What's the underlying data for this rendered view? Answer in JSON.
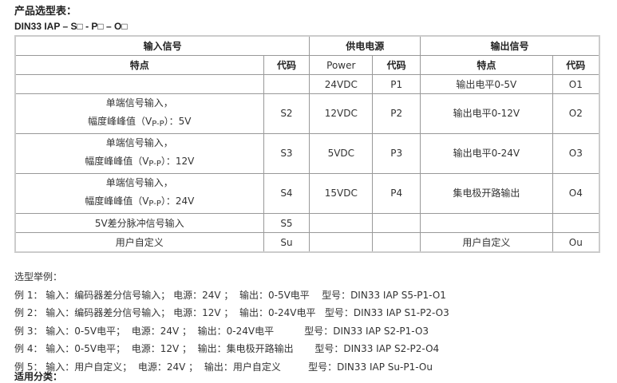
{
  "title": "产品选型表：",
  "model_code": "DIN33  IAP – S□ - P□ – O□",
  "table": {
    "groups": [
      "输入信号",
      "供电电源",
      "输出信号"
    ],
    "subheaders": [
      "特点",
      "代码",
      "Power",
      "代码",
      "特点",
      "代码"
    ],
    "rows": [
      {
        "in_line1": "",
        "in_line2": "",
        "in_code": "",
        "power": "24VDC",
        "p_code": "P1",
        "out": "输出电平0-5V",
        "o_code": "O1"
      },
      {
        "in_line1": "单端信号输入，",
        "in_line2": "幅度峰峰值（V",
        "in_sub": "P-P",
        "in_tail": "）：5V",
        "in_code": "S2",
        "power": "12VDC",
        "p_code": "P2",
        "out": "输出电平0-12V",
        "o_code": "O2"
      },
      {
        "in_line1": "单端信号输入，",
        "in_line2": "幅度峰峰值（V",
        "in_sub": "P-P",
        "in_tail": "）：12V",
        "in_code": "S3",
        "power": "5VDC",
        "p_code": "P3",
        "out": "输出电平0-24V",
        "o_code": "O3"
      },
      {
        "in_line1": "单端信号输入，",
        "in_line2": "幅度峰峰值（V",
        "in_sub": "P-P",
        "in_tail": "）：24V",
        "in_code": "S4",
        "power": "15VDC",
        "p_code": "P4",
        "out": "集电极开路输出",
        "o_code": "O4"
      },
      {
        "in_line1": "5V差分脉冲信号输入",
        "in_code": "S5",
        "power": "",
        "p_code": "",
        "out": "",
        "o_code": ""
      },
      {
        "in_line1": "用户自定义",
        "in_code": "Su",
        "power": "",
        "p_code": "",
        "out": "用户自定义",
        "o_code": "Ou"
      }
    ]
  },
  "examples": {
    "heading": "选型举例：",
    "items": [
      "例 1： 输入：编码器差分信号输入； 电源：24V ；  输出：0-5V电平    型号：DIN33 IAP S5-P1-O1",
      "例 2： 输入：编码器差分信号输入； 电源：12V ；  输出：0-24V电平   型号：DIN33 IAP S1-P2-O3",
      "例 3： 输入：0-5V电平；  电源：24V ；  输出：0-24V电平          型号：DIN33 IAP S2-P1-O3",
      "例 4： 输入：0-5V电平；  电源：12V ；  输出：集电极开路输出       型号：DIN33 IAP S2-P2-O4",
      "例 5： 输入：用户自定义；  电源：24V ；  输出：用户自定义         型号：DIN33 IAP Su-P1-Ou"
    ]
  },
  "next_heading": "适用分类："
}
